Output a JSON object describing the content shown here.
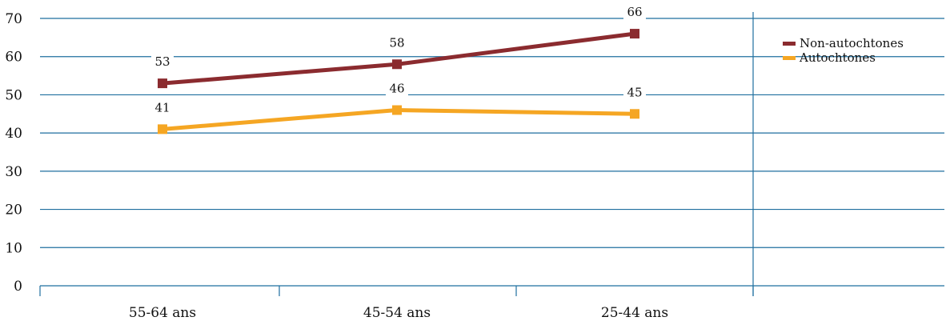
{
  "chart_data": {
    "type": "line",
    "categories": [
      "55-64 ans",
      "45-54 ans",
      "25-44 ans"
    ],
    "series": [
      {
        "name": "Non-autochtones",
        "values": [
          53,
          58,
          66
        ],
        "color": "#8b2b2f"
      },
      {
        "name": "Autochtones",
        "values": [
          41,
          46,
          45
        ],
        "color": "#f5a623"
      }
    ],
    "ylim": [
      0,
      70
    ],
    "yticks": [
      0,
      10,
      20,
      30,
      40,
      50,
      60,
      70
    ],
    "grid": true,
    "grid_color": "#1f6f9f",
    "legend_position": "top-right",
    "title": "",
    "xlabel": "",
    "ylabel": ""
  }
}
